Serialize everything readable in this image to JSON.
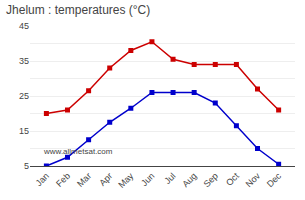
{
  "chart_data": {
    "type": "line",
    "title": "Jhelum : temperatures (°C)",
    "categories": [
      "Jan",
      "Feb",
      "Mar",
      "Apr",
      "May",
      "Jun",
      "Jul",
      "Aug",
      "Sep",
      "Oct",
      "Nov",
      "Dec"
    ],
    "series": [
      {
        "color": "#cc0000",
        "marker": "square",
        "line_style": "solid",
        "values": [
          20,
          21,
          26.5,
          33,
          38,
          40.5,
          35.5,
          34,
          34,
          34,
          27,
          21
        ]
      },
      {
        "color": "#0000cc",
        "marker": "square",
        "line_style": "solid",
        "values": [
          5,
          7.5,
          12.5,
          17.5,
          21.5,
          26,
          26,
          26,
          23,
          16.5,
          10,
          5.5
        ]
      }
    ],
    "ylim": [
      5,
      45
    ],
    "yticks": [
      5,
      {
        "value": 10,
        "label": ""
      },
      15,
      {
        "value": 20,
        "label": ""
      },
      25,
      {
        "value": 30,
        "label": ""
      },
      35,
      {
        "value": 40,
        "label": ""
      },
      45
    ],
    "grid": true,
    "annotations": [
      "www.allmetsat.com"
    ]
  }
}
